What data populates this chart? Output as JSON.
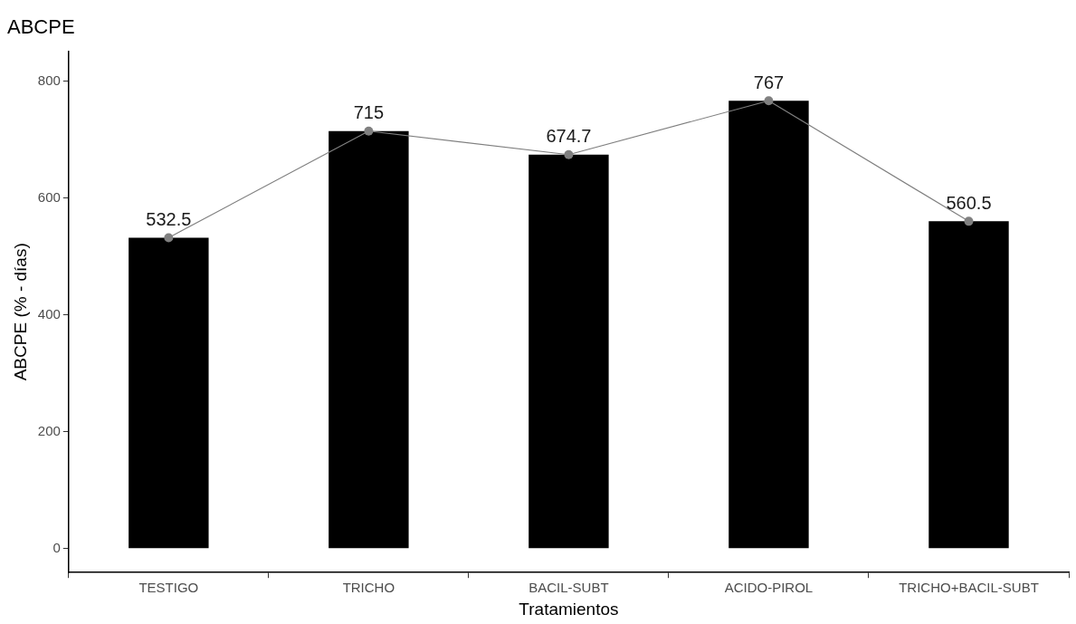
{
  "chart_data": {
    "type": "bar",
    "title": "ABCPE",
    "xlabel": "Tratamientos",
    "ylabel": "ABCPE (% - días)",
    "categories": [
      "TESTIGO",
      "TRICHO",
      "BACIL-SUBT",
      "ACIDO-PIROL",
      "TRICHO+BACIL-SUBT"
    ],
    "series": [
      {
        "color": "#000000",
        "values": [
          532.5,
          715,
          674.7,
          767,
          560.5
        ]
      },
      {
        "type": "line",
        "color": "#808080",
        "marker": "circle",
        "values": [
          532.5,
          715,
          674.7,
          767,
          560.5
        ],
        "value_labels": [
          "532.5",
          "715",
          "674.7",
          "767",
          "560.5"
        ]
      }
    ],
    "ylim": [
      -41,
      852
    ],
    "yticks": [
      0,
      200,
      400,
      600,
      800
    ],
    "grid": false,
    "legend": false
  }
}
